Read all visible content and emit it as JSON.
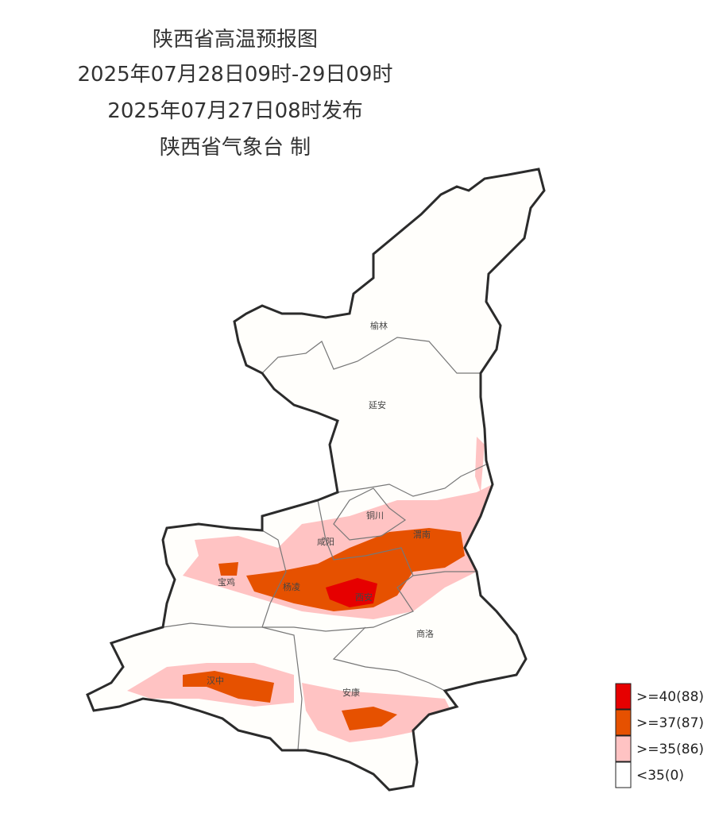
{
  "header": {
    "title": "陕西省高温预报图",
    "period": "2025年07月28日09时-29日09时",
    "issued": "2025年07月27日08时发布",
    "producer": "陕西省气象台 制"
  },
  "map": {
    "cities": [
      "榆林",
      "延安",
      "铜川",
      "咸阳",
      "渭南",
      "宝鸡",
      "杨凌",
      "西安",
      "商洛",
      "汉中",
      "安康"
    ]
  },
  "legend": {
    "items": [
      {
        "label": ">=40(88)",
        "color": "#e60000"
      },
      {
        "label": ">=37(87)",
        "color": "#e65100"
      },
      {
        "label": ">=35(86)",
        "color": "#ffc3c3"
      },
      {
        "label": "<35(0)",
        "color": "#ffffff"
      }
    ]
  }
}
